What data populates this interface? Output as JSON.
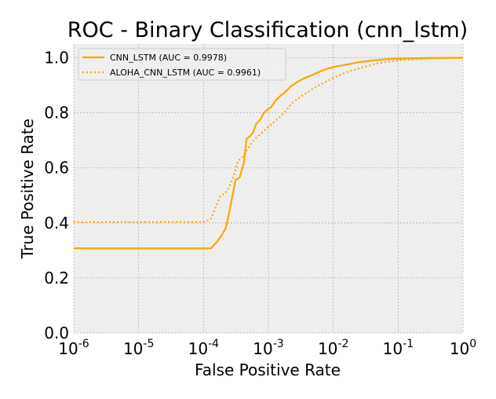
{
  "chart_data": {
    "type": "line",
    "title": "ROC - Binary Classification (cnn_lstm)",
    "xlabel": "False Positive Rate",
    "ylabel": "True Positive Rate",
    "xscale": "log",
    "xlim": [
      1e-06,
      1
    ],
    "ylim": [
      0,
      1.05
    ],
    "grid": true,
    "legend_position": "top-left",
    "x_ticks": [
      {
        "value": 1e-06,
        "base": "10",
        "exp": "-6"
      },
      {
        "value": 1e-05,
        "base": "10",
        "exp": "-5"
      },
      {
        "value": 0.0001,
        "base": "10",
        "exp": "-4"
      },
      {
        "value": 0.001,
        "base": "10",
        "exp": "-3"
      },
      {
        "value": 0.01,
        "base": "10",
        "exp": "-2"
      },
      {
        "value": 0.1,
        "base": "10",
        "exp": "-1"
      },
      {
        "value": 1,
        "base": "10",
        "exp": "0"
      }
    ],
    "y_ticks": [
      {
        "value": 0.0,
        "label": "0.0"
      },
      {
        "value": 0.2,
        "label": "0.2"
      },
      {
        "value": 0.4,
        "label": "0.4"
      },
      {
        "value": 0.6,
        "label": "0.6"
      },
      {
        "value": 0.8,
        "label": "0.8"
      },
      {
        "value": 1.0,
        "label": "1.0"
      }
    ],
    "series": [
      {
        "name": "CNN_LSTM (AUC = 0.9978)",
        "color": "#FFA500",
        "style": "solid",
        "points": [
          [
            1e-06,
            0.308
          ],
          [
            0.00013,
            0.308
          ],
          [
            0.00016,
            0.33
          ],
          [
            0.00019,
            0.355
          ],
          [
            0.00022,
            0.38
          ],
          [
            0.00025,
            0.44
          ],
          [
            0.00028,
            0.5
          ],
          [
            0.00031,
            0.555
          ],
          [
            0.00036,
            0.565
          ],
          [
            0.00042,
            0.62
          ],
          [
            0.00046,
            0.705
          ],
          [
            0.00052,
            0.715
          ],
          [
            0.00058,
            0.727
          ],
          [
            0.00065,
            0.76
          ],
          [
            0.00075,
            0.775
          ],
          [
            0.00085,
            0.8
          ],
          [
            0.00095,
            0.81
          ],
          [
            0.0011,
            0.82
          ],
          [
            0.0013,
            0.845
          ],
          [
            0.0015,
            0.86
          ],
          [
            0.0018,
            0.875
          ],
          [
            0.0022,
            0.895
          ],
          [
            0.0027,
            0.91
          ],
          [
            0.0035,
            0.925
          ],
          [
            0.0045,
            0.935
          ],
          [
            0.006,
            0.948
          ],
          [
            0.008,
            0.96
          ],
          [
            0.011,
            0.968
          ],
          [
            0.016,
            0.975
          ],
          [
            0.025,
            0.984
          ],
          [
            0.04,
            0.99
          ],
          [
            0.08,
            0.996
          ],
          [
            0.15,
            0.998
          ],
          [
            0.3,
            0.999
          ],
          [
            1,
            1.0
          ]
        ]
      },
      {
        "name": "ALOHA_CNN_LSTM (AUC = 0.9961)",
        "color": "#FFA500",
        "style": "dotted",
        "points": [
          [
            1e-06,
            0.403
          ],
          [
            0.0001,
            0.403
          ],
          [
            0.00013,
            0.415
          ],
          [
            0.00015,
            0.45
          ],
          [
            0.00018,
            0.495
          ],
          [
            0.00022,
            0.51
          ],
          [
            0.00026,
            0.54
          ],
          [
            0.0003,
            0.58
          ],
          [
            0.00034,
            0.625
          ],
          [
            0.0004,
            0.64
          ],
          [
            0.00048,
            0.67
          ],
          [
            0.00055,
            0.69
          ],
          [
            0.00065,
            0.71
          ],
          [
            0.00078,
            0.725
          ],
          [
            0.00095,
            0.745
          ],
          [
            0.0012,
            0.765
          ],
          [
            0.0015,
            0.785
          ],
          [
            0.0019,
            0.81
          ],
          [
            0.0023,
            0.835
          ],
          [
            0.003,
            0.855
          ],
          [
            0.004,
            0.875
          ],
          [
            0.0055,
            0.895
          ],
          [
            0.008,
            0.915
          ],
          [
            0.012,
            0.935
          ],
          [
            0.018,
            0.952
          ],
          [
            0.028,
            0.965
          ],
          [
            0.045,
            0.978
          ],
          [
            0.08,
            0.988
          ],
          [
            0.15,
            0.994
          ],
          [
            0.3,
            0.998
          ],
          [
            1,
            1.0
          ]
        ]
      }
    ]
  }
}
